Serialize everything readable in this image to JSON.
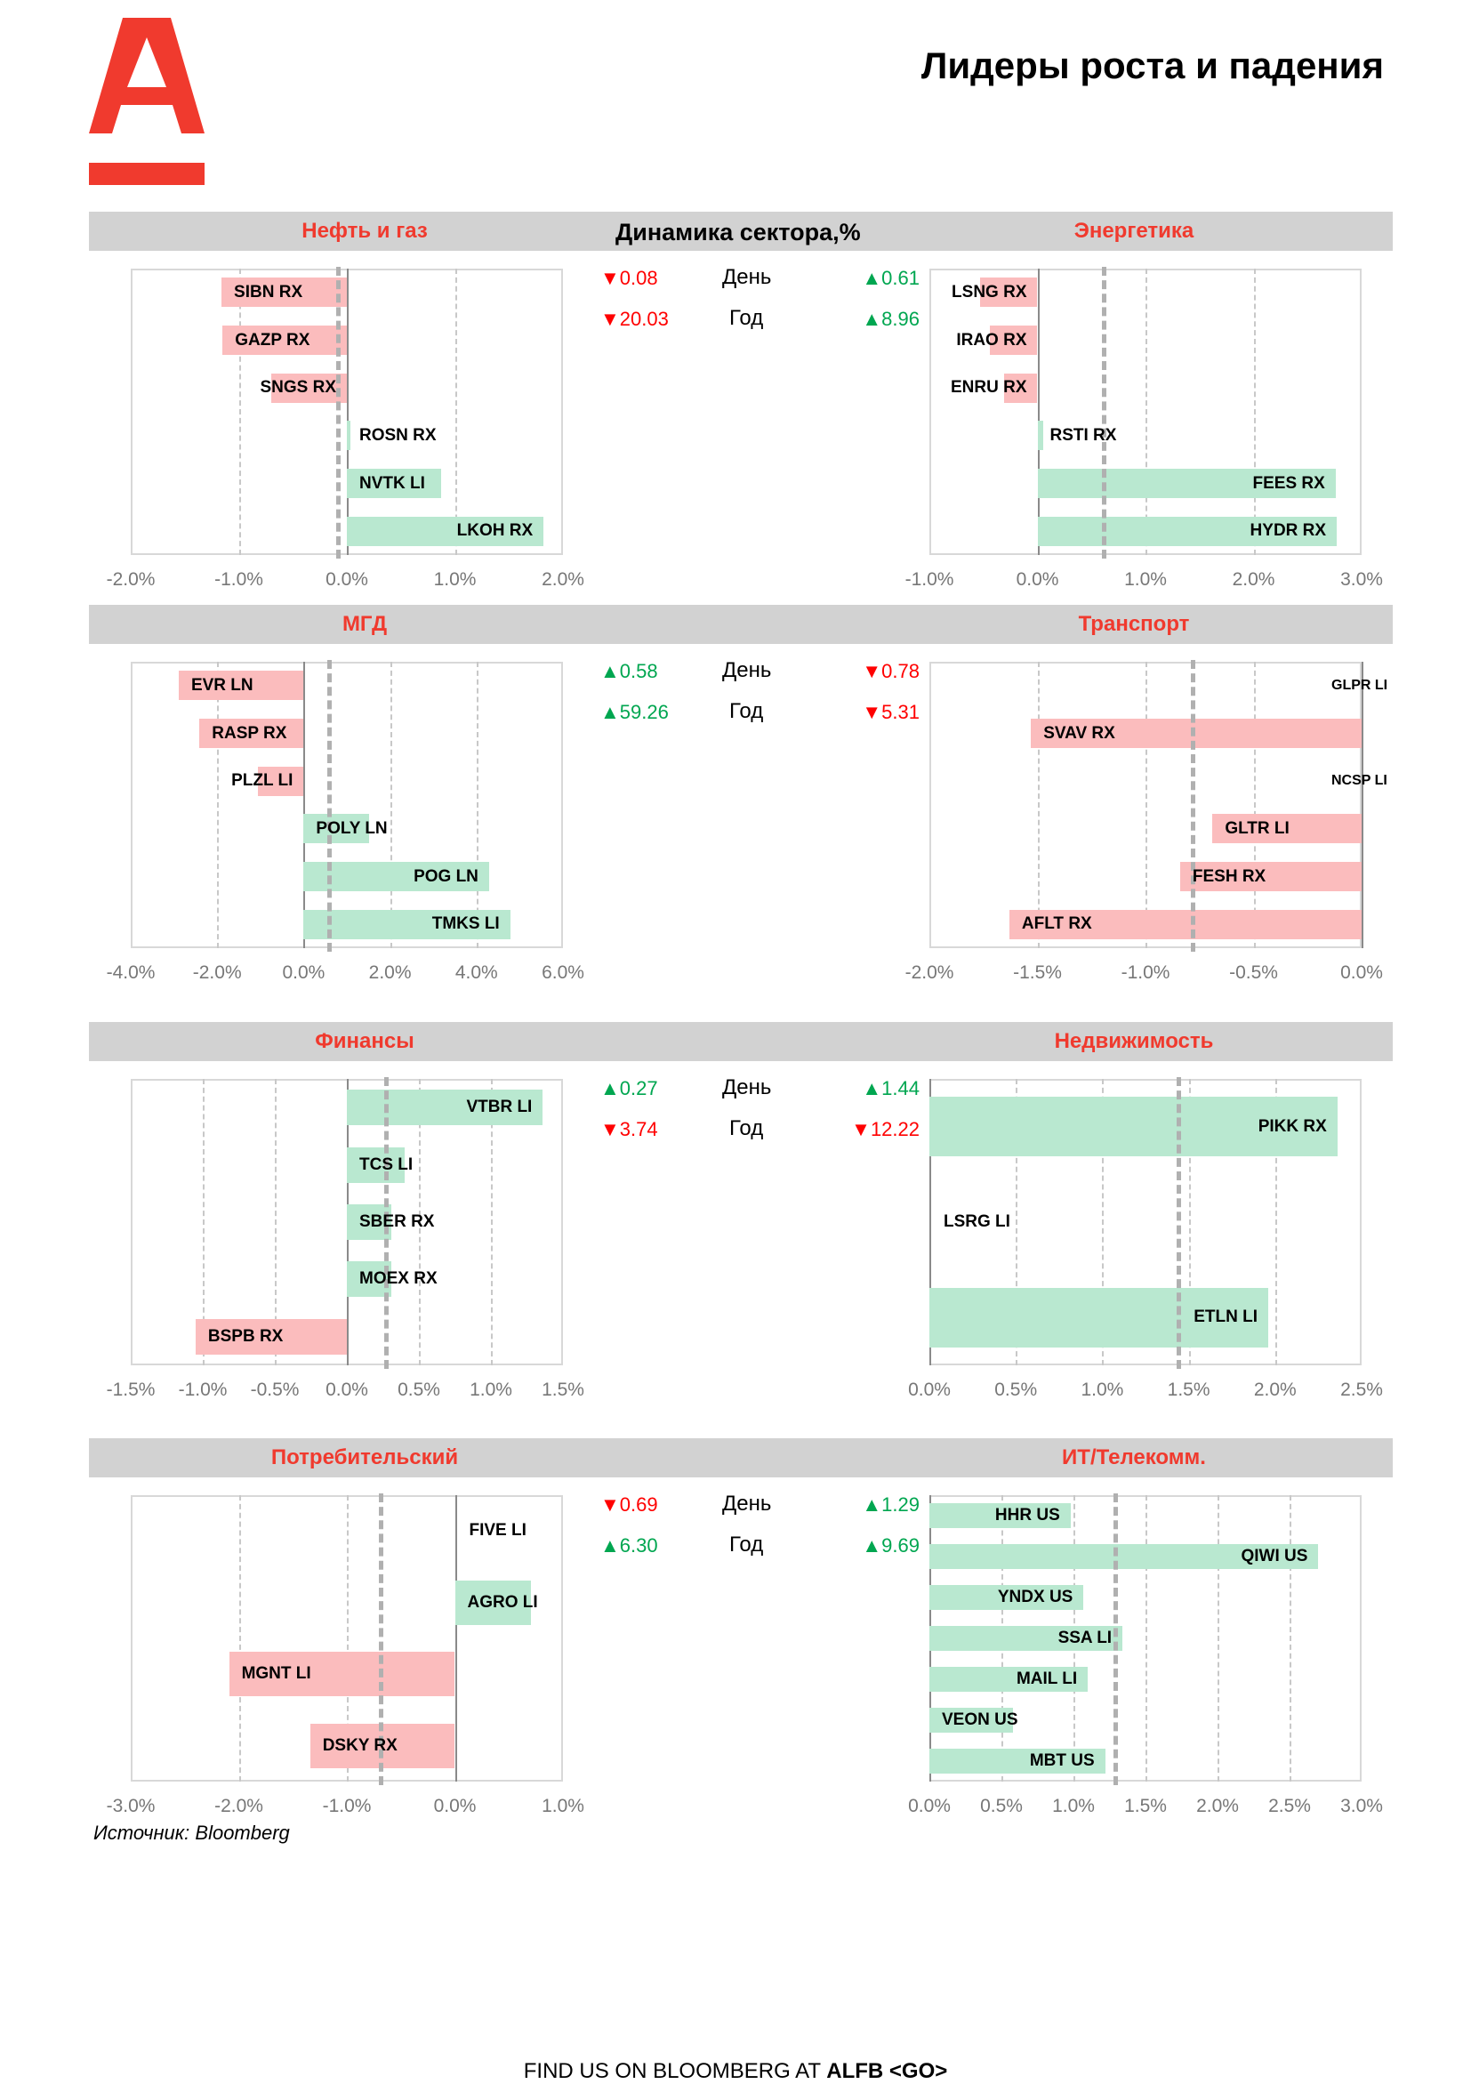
{
  "header": {
    "title": "Лидеры роста и падения",
    "logo_text": "А"
  },
  "center_header": "Динамика сектора,%",
  "stat_labels": {
    "day": "День",
    "year": "Год"
  },
  "colors": {
    "accent": "#f03a2e",
    "positive_bar": "#b9e8d0",
    "negative_bar": "#fbbcbd",
    "up": "#00a650",
    "down": "#ff0000"
  },
  "sections": [
    {
      "stats": {
        "day_left": {
          "dir": "down",
          "value": "0.08"
        },
        "year_left": {
          "dir": "down",
          "value": "20.03"
        },
        "day_right": {
          "dir": "up",
          "value": "0.61"
        },
        "year_right": {
          "dir": "up",
          "value": "8.96"
        }
      },
      "left": {
        "title": "Нефть и газ"
      },
      "right": {
        "title": "Энергетика"
      }
    },
    {
      "stats": {
        "day_left": {
          "dir": "up",
          "value": "0.58"
        },
        "year_left": {
          "dir": "up",
          "value": "59.26"
        },
        "day_right": {
          "dir": "down",
          "value": "0.78"
        },
        "year_right": {
          "dir": "down",
          "value": "5.31"
        }
      },
      "left": {
        "title": "МГД"
      },
      "right": {
        "title": "Транспорт"
      }
    },
    {
      "stats": {
        "day_left": {
          "dir": "up",
          "value": "0.27"
        },
        "year_left": {
          "dir": "down",
          "value": "3.74"
        },
        "day_right": {
          "dir": "up",
          "value": "1.44"
        },
        "year_right": {
          "dir": "down",
          "value": "12.22"
        }
      },
      "left": {
        "title": "Финансы"
      },
      "right": {
        "title": "Недвижимость"
      }
    },
    {
      "stats": {
        "day_left": {
          "dir": "down",
          "value": "0.69"
        },
        "year_left": {
          "dir": "up",
          "value": "6.30"
        },
        "day_right": {
          "dir": "up",
          "value": "1.29"
        },
        "year_right": {
          "dir": "up",
          "value": "9.69"
        }
      },
      "left": {
        "title": "Потребительский"
      },
      "right": {
        "title": "ИТ/Телекомм."
      }
    }
  ],
  "chart_data": [
    {
      "type": "bar",
      "orientation": "horizontal",
      "title": "Нефть и газ",
      "xlim": [
        -2,
        2
      ],
      "ticks": [
        "-2.0%",
        "-1.0%",
        "0.0%",
        "1.0%",
        "2.0%"
      ],
      "tick_values": [
        -2,
        -1,
        0,
        1,
        2
      ],
      "sector_day_change": -0.08,
      "categories": [
        "SIBN RX",
        "GAZP RX",
        "SNGS RX",
        "ROSN RX",
        "NVTK LI",
        "LKOH RX"
      ],
      "values": [
        -1.16,
        -1.15,
        -0.7,
        0.03,
        0.87,
        1.82
      ]
    },
    {
      "type": "bar",
      "orientation": "horizontal",
      "title": "Энергетика",
      "xlim": [
        -1,
        3
      ],
      "ticks": [
        "-1.0%",
        "0.0%",
        "1.0%",
        "2.0%",
        "3.0%"
      ],
      "tick_values": [
        -1,
        0,
        1,
        2,
        3
      ],
      "sector_day_change": 0.61,
      "categories": [
        "LSNG RX",
        "IRAO RX",
        "ENRU RX",
        "RSTI RX",
        "FEES RX",
        "HYDR RX"
      ],
      "values": [
        -0.53,
        -0.44,
        -0.31,
        0.05,
        2.76,
        2.77
      ]
    },
    {
      "type": "bar",
      "orientation": "horizontal",
      "title": "МГД",
      "xlim": [
        -4,
        6
      ],
      "ticks": [
        "-4.0%",
        "-2.0%",
        "0.0%",
        "2.0%",
        "4.0%",
        "6.0%"
      ],
      "tick_values": [
        -4,
        -2,
        0,
        2,
        4,
        6
      ],
      "sector_day_change": 0.58,
      "categories": [
        "EVR LN",
        "RASP RX",
        "PLZL LI",
        "POLY LN",
        "POG LN",
        "TMKS LI"
      ],
      "values": [
        -2.89,
        -2.41,
        -1.05,
        1.51,
        4.29,
        4.78
      ]
    },
    {
      "type": "bar",
      "orientation": "horizontal",
      "title": "Транспорт",
      "xlim": [
        -2,
        0
      ],
      "ticks": [
        "-2.0%",
        "-1.5%",
        "-1.0%",
        "-0.5%",
        "0.0%"
      ],
      "tick_values": [
        -2,
        -1.5,
        -1,
        -0.5,
        0
      ],
      "sector_day_change": -0.78,
      "categories": [
        "GLPR LI",
        "SVAV RX",
        "NCSP LI",
        "GLTR LI",
        "FESH RX",
        "AFLT RX"
      ],
      "values": [
        0,
        -1.53,
        0,
        -0.69,
        -0.84,
        -1.63
      ]
    },
    {
      "type": "bar",
      "orientation": "horizontal",
      "title": "Финансы",
      "xlim": [
        -1.5,
        1.5
      ],
      "ticks": [
        "-1.5%",
        "-1.0%",
        "-0.5%",
        "0.0%",
        "0.5%",
        "1.0%",
        "1.5%"
      ],
      "tick_values": [
        -1.5,
        -1,
        -0.5,
        0,
        0.5,
        1,
        1.5
      ],
      "sector_day_change": 0.27,
      "categories": [
        "VTBR LI",
        "TCS LI",
        "SBER RX",
        "MOEX RX",
        "BSPB RX"
      ],
      "values": [
        1.36,
        0.4,
        0.31,
        0.31,
        -1.05
      ]
    },
    {
      "type": "bar",
      "orientation": "horizontal",
      "title": "Недвижимость",
      "xlim": [
        0,
        2.5
      ],
      "ticks": [
        "0.0%",
        "0.5%",
        "1.0%",
        "1.5%",
        "2.0%",
        "2.5%"
      ],
      "tick_values": [
        0,
        0.5,
        1,
        1.5,
        2,
        2.5
      ],
      "sector_day_change": 1.44,
      "categories": [
        "PIKK RX",
        "LSRG LI",
        "ETLN LI"
      ],
      "values": [
        2.36,
        0,
        1.96
      ]
    },
    {
      "type": "bar",
      "orientation": "horizontal",
      "title": "Потребительский",
      "xlim": [
        -3,
        1
      ],
      "ticks": [
        "-3.0%",
        "-2.0%",
        "-1.0%",
        "0.0%",
        "1.0%"
      ],
      "tick_values": [
        -3,
        -2,
        -1,
        0,
        1
      ],
      "sector_day_change": -0.69,
      "categories": [
        "FIVE LI",
        "AGRO LI",
        "MGNT LI",
        "DSKY RX"
      ],
      "values": [
        0,
        0.7,
        -2.09,
        -1.34
      ]
    },
    {
      "type": "bar",
      "orientation": "horizontal",
      "title": "ИТ/Телекомм.",
      "xlim": [
        0,
        3
      ],
      "ticks": [
        "0.0%",
        "0.5%",
        "1.0%",
        "1.5%",
        "2.0%",
        "2.5%",
        "3.0%"
      ],
      "tick_values": [
        0,
        0.5,
        1,
        1.5,
        2,
        2.5,
        3
      ],
      "sector_day_change": 1.29,
      "categories": [
        "HHR US",
        "QIWI US",
        "YNDX US",
        "SSA LI",
        "MAIL LI",
        "VEON US",
        "MBT US"
      ],
      "values": [
        0.98,
        2.7,
        1.07,
        1.34,
        1.1,
        0.58,
        1.22
      ]
    }
  ],
  "source": "Источник: Bloomberg",
  "footer": {
    "text": "FIND US ON BLOOMBERG AT ",
    "bold": "ALFB <GO>"
  }
}
